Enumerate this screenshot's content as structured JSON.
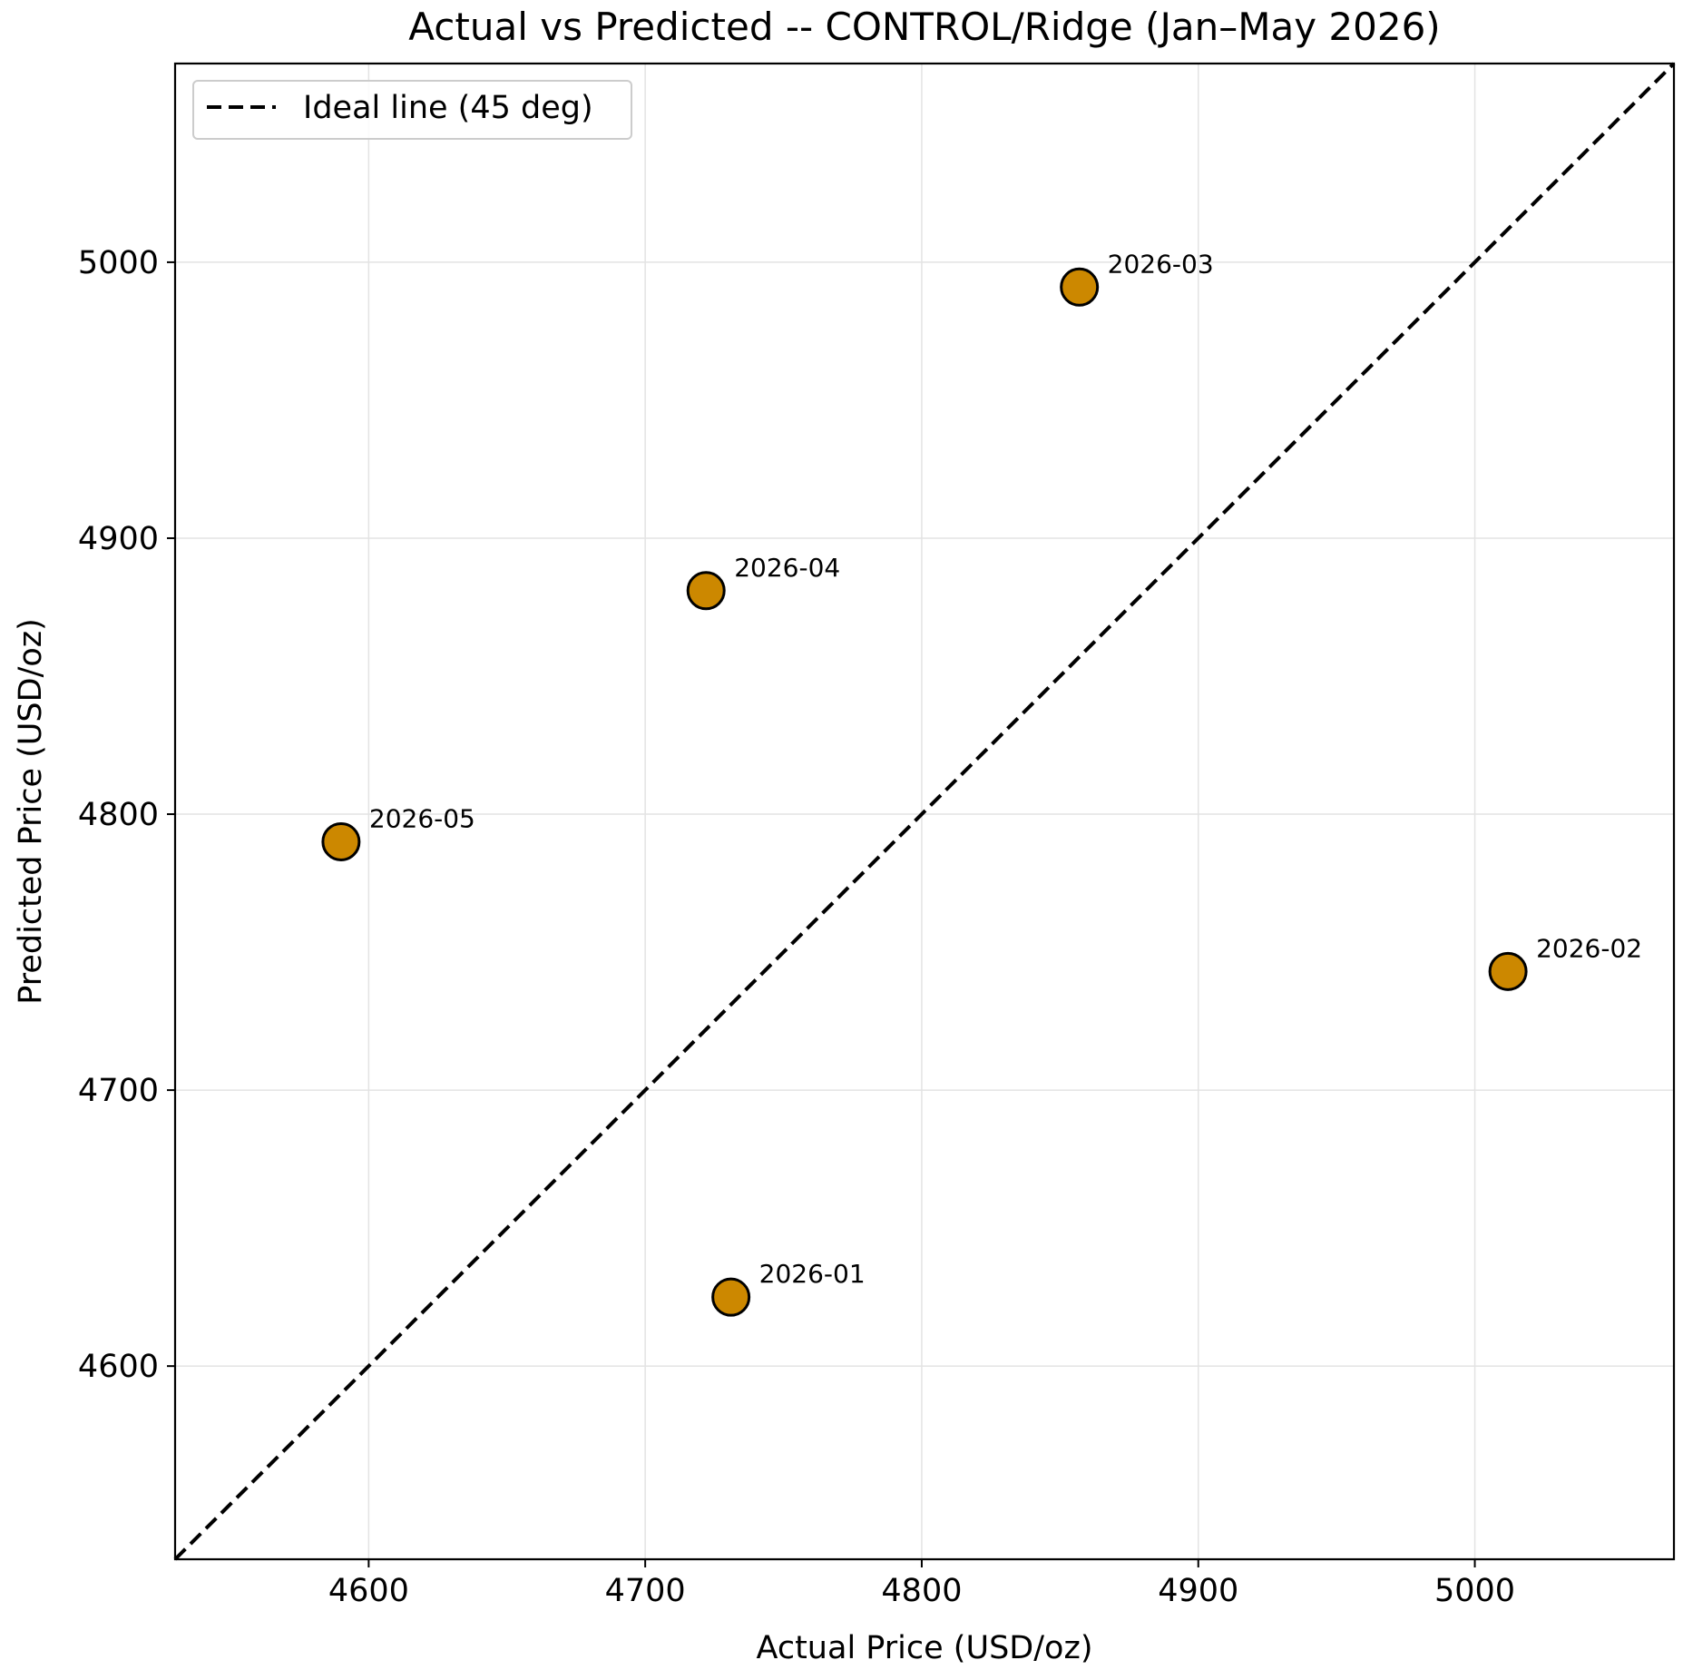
{
  "chart_data": {
    "type": "scatter",
    "title": "Actual vs Predicted -- CONTROL/Ridge (Jan–May 2026)",
    "xlabel": "Actual Price (USD/oz)",
    "ylabel": "Predicted Price (USD/oz)",
    "xlim": [
      4530,
      5072
    ],
    "ylim": [
      4530,
      5072
    ],
    "xticks": [
      4600,
      4700,
      4800,
      4900,
      5000
    ],
    "yticks": [
      4600,
      4700,
      4800,
      4900,
      5000
    ],
    "grid": true,
    "legend_position": "top-left",
    "series": [
      {
        "name": "",
        "color": "#cc8800",
        "points": [
          {
            "label": "2026-01",
            "x": 4731,
            "y": 4625
          },
          {
            "label": "2026-02",
            "x": 5012,
            "y": 4743
          },
          {
            "label": "2026-03",
            "x": 4857,
            "y": 4991
          },
          {
            "label": "2026-04",
            "x": 4722,
            "y": 4881
          },
          {
            "label": "2026-05",
            "x": 4590,
            "y": 4790
          }
        ]
      }
    ],
    "reference_line": {
      "name": "Ideal line (45 deg)",
      "style": "dashed",
      "color": "#000000"
    }
  }
}
